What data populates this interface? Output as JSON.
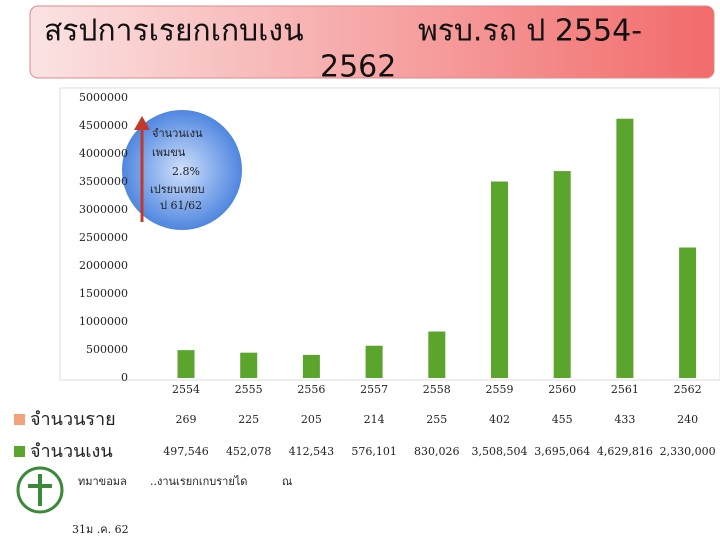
{
  "chart_data": {
    "type": "bar",
    "title": [
      "สรปการเรยกเกบเงน",
      "พรบ.รถ ป 2554-",
      "2562"
    ],
    "categories": [
      "2554",
      "2555",
      "2556",
      "2557",
      "2558",
      "2559",
      "2560",
      "2561",
      "2562"
    ],
    "series": [
      {
        "name": "จำนวนราย",
        "color": "#f4a27a",
        "values": [
          269,
          225,
          205,
          214,
          255,
          402,
          455,
          433,
          240
        ],
        "value_labels": [
          "269",
          "225",
          "205",
          "214",
          "255",
          "402",
          "455",
          "433",
          "240"
        ]
      },
      {
        "name": "จำนวนเงน",
        "color": "#5ba52d",
        "values": [
          497546,
          452078,
          412543,
          576101,
          830026,
          3508504,
          3695064,
          4629816,
          2330000
        ],
        "value_labels": [
          "497,546",
          "452,078",
          "412,543",
          "576,101",
          "830,026",
          "3,508,504",
          "3,695,064",
          "4,629,816",
          "2,330,000"
        ]
      }
    ],
    "ylim": [
      0,
      5000000
    ],
    "yticks": [
      0,
      500000,
      1000000,
      1500000,
      2000000,
      2500000,
      3000000,
      3500000,
      4000000,
      4500000,
      5000000
    ],
    "grid": false,
    "annotation": [
      "จำนวนเงน",
      "เพมขน",
      "2.8%",
      "เปรยบเทยบ",
      "ป 61/62"
    ]
  },
  "footer": {
    "source_label": "ทมาขอมล",
    "date": "31ม .ค. 62",
    "source": "..งานเรยกเกบรายได",
    "at": "ณ"
  }
}
